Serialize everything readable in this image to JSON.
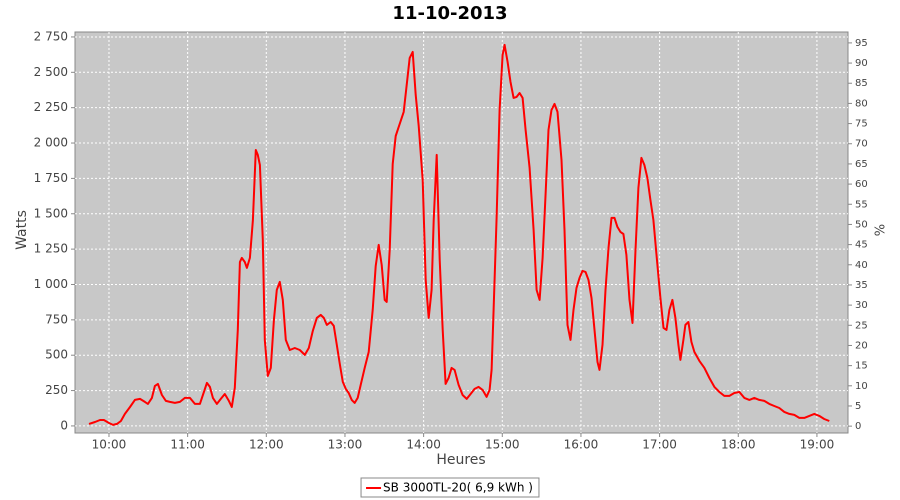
{
  "chart_data": {
    "type": "line",
    "title": "11-10-2013",
    "x_label": "Heures",
    "y_label": "Watts",
    "y2_label": "%",
    "xlim": [
      9.568,
      19.395
    ],
    "ylim": [
      -50,
      2785
    ],
    "y2lim": [
      -1.7,
      97.7
    ],
    "xticks": [
      {
        "value": 10,
        "label": "10:00"
      },
      {
        "value": 11,
        "label": "11:00"
      },
      {
        "value": 12,
        "label": "12:00"
      },
      {
        "value": 13,
        "label": "13:00"
      },
      {
        "value": 14,
        "label": "14:00"
      },
      {
        "value": 15,
        "label": "15:00"
      },
      {
        "value": 16,
        "label": "16:00"
      },
      {
        "value": 17,
        "label": "17:00"
      },
      {
        "value": 18,
        "label": "18:00"
      },
      {
        "value": 19,
        "label": "19:00"
      }
    ],
    "yticks": [
      0,
      250,
      500,
      750,
      {
        "value": 1000,
        "label": "1 000"
      },
      {
        "value": 1250,
        "label": "1 250"
      },
      {
        "value": 1500,
        "label": "1 500"
      },
      {
        "value": 1750,
        "label": "1 750"
      },
      {
        "value": 2000,
        "label": "2 000"
      },
      {
        "value": 2250,
        "label": "2 250"
      },
      {
        "value": 2500,
        "label": "2 500"
      },
      {
        "value": 2750,
        "label": "2 750"
      }
    ],
    "y2ticks": [
      0,
      5,
      10,
      15,
      20,
      25,
      30,
      35,
      40,
      45,
      50,
      55,
      60,
      65,
      70,
      75,
      80,
      85,
      90,
      95
    ],
    "grid": true,
    "x": [
      9.746,
      9.822,
      9.886,
      9.936,
      10.0,
      10.051,
      10.102,
      10.152,
      10.203,
      10.267,
      10.33,
      10.394,
      10.457,
      10.495,
      10.546,
      10.584,
      10.622,
      10.673,
      10.724,
      10.775,
      10.838,
      10.902,
      10.965,
      11.029,
      11.092,
      11.156,
      11.207,
      11.245,
      11.283,
      11.321,
      11.372,
      11.422,
      11.473,
      11.524,
      11.562,
      11.6,
      11.638,
      11.664,
      11.689,
      11.727,
      11.753,
      11.791,
      11.829,
      11.867,
      11.892,
      11.918,
      11.956,
      11.981,
      12.019,
      12.057,
      12.096,
      12.134,
      12.172,
      12.21,
      12.248,
      12.299,
      12.362,
      12.426,
      12.489,
      12.54,
      12.591,
      12.642,
      12.692,
      12.731,
      12.769,
      12.819,
      12.858,
      12.896,
      12.934,
      12.972,
      13.01,
      13.048,
      13.086,
      13.124,
      13.162,
      13.2,
      13.251,
      13.302,
      13.353,
      13.391,
      13.429,
      13.467,
      13.505,
      13.531,
      13.569,
      13.607,
      13.645,
      13.696,
      13.747,
      13.785,
      13.823,
      13.861,
      13.899,
      13.937,
      13.988,
      14.026,
      14.064,
      14.102,
      14.128,
      14.166,
      14.204,
      14.242,
      14.28,
      14.318,
      14.356,
      14.394,
      14.445,
      14.496,
      14.547,
      14.597,
      14.648,
      14.699,
      14.75,
      14.801,
      14.839,
      14.864,
      14.89,
      14.928,
      14.966,
      15.004,
      15.029,
      15.067,
      15.105,
      15.144,
      15.182,
      15.22,
      15.258,
      15.296,
      15.347,
      15.398,
      15.436,
      15.474,
      15.512,
      15.55,
      15.588,
      15.626,
      15.664,
      15.702,
      15.753,
      15.791,
      15.829,
      15.867,
      15.905,
      15.943,
      15.981,
      16.02,
      16.058,
      16.096,
      16.134,
      16.172,
      16.21,
      16.236,
      16.274,
      16.312,
      16.35,
      16.388,
      16.426,
      16.464,
      16.502,
      16.54,
      16.578,
      16.617,
      16.655,
      16.693,
      16.731,
      16.769,
      16.807,
      16.845,
      16.883,
      16.921,
      16.96,
      17.01,
      17.049,
      17.087,
      17.125,
      17.163,
      17.201,
      17.239,
      17.264,
      17.302,
      17.328,
      17.366,
      17.404,
      17.442,
      17.506,
      17.569,
      17.633,
      17.696,
      17.76,
      17.823,
      17.887,
      17.95,
      18.014,
      18.077,
      18.141,
      18.204,
      18.268,
      18.331,
      18.395,
      18.458,
      18.522,
      18.585,
      18.649,
      18.712,
      18.776,
      18.839,
      18.903,
      18.966,
      19.03,
      19.093,
      19.157
    ],
    "series": [
      {
        "name": "SB 3000TL-20( 6,9 kWh )",
        "color": "#ff0000",
        "values": [
          14,
          28,
          42,
          42,
          21,
          7,
          14,
          35,
          85,
          134,
          184,
          191,
          170,
          156,
          198,
          283,
          297,
          219,
          177,
          170,
          163,
          170,
          198,
          198,
          156,
          156,
          240,
          304,
          276,
          198,
          156,
          191,
          226,
          177,
          134,
          269,
          679,
          1159,
          1188,
          1159,
          1117,
          1188,
          1456,
          1951,
          1916,
          1845,
          1315,
          608,
          354,
          410,
          749,
          962,
          1018,
          891,
          608,
          537,
          551,
          537,
          502,
          551,
          672,
          764,
          785,
          764,
          714,
          735,
          707,
          573,
          438,
          311,
          262,
          233,
          184,
          163,
          198,
          290,
          410,
          523,
          820,
          1131,
          1280,
          1138,
          891,
          877,
          1244,
          1852,
          2050,
          2135,
          2220,
          2411,
          2602,
          2644,
          2340,
          2121,
          1739,
          1032,
          764,
          962,
          1456,
          1916,
          1174,
          679,
          297,
          339,
          410,
          396,
          290,
          219,
          191,
          226,
          262,
          276,
          255,
          205,
          255,
          396,
          820,
          1471,
          2234,
          2623,
          2694,
          2573,
          2432,
          2319,
          2326,
          2354,
          2319,
          2093,
          1824,
          1386,
          962,
          891,
          1188,
          1626,
          2093,
          2234,
          2277,
          2220,
          1881,
          1386,
          714,
          608,
          820,
          976,
          1046,
          1096,
          1089,
          1032,
          905,
          679,
          452,
          396,
          573,
          962,
          1258,
          1471,
          1471,
          1407,
          1372,
          1357,
          1209,
          891,
          728,
          1244,
          1683,
          1895,
          1845,
          1753,
          1598,
          1456,
          1209,
          905,
          693,
          679,
          820,
          891,
          764,
          573,
          467,
          608,
          714,
          735,
          594,
          523,
          460,
          410,
          339,
          276,
          240,
          212,
          212,
          233,
          240,
          198,
          184,
          198,
          184,
          177,
          156,
          141,
          127,
          99,
          85,
          78,
          57,
          57,
          71,
          85,
          71,
          49,
          35
        ]
      }
    ]
  }
}
